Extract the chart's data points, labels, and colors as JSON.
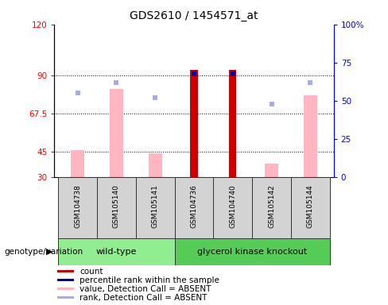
{
  "title": "GDS2610 / 1454571_at",
  "samples": [
    "GSM104738",
    "GSM105140",
    "GSM105141",
    "GSM104736",
    "GSM104740",
    "GSM105142",
    "GSM105144"
  ],
  "count_values": [
    null,
    null,
    null,
    93,
    93,
    null,
    null
  ],
  "count_color": "#CC0000",
  "percentile_values": [
    null,
    null,
    null,
    67.5,
    67.5,
    null,
    null
  ],
  "percentile_color": "#0000AA",
  "absent_value_heights": [
    46,
    82,
    44,
    null,
    null,
    38,
    78
  ],
  "absent_value_color": "#FFB6C1",
  "absent_rank_values": [
    55,
    62,
    52,
    null,
    null,
    48,
    62
  ],
  "absent_rank_color": "#AAAAEE",
  "ylim_left": [
    30,
    120
  ],
  "ylim_right": [
    0,
    100
  ],
  "yticks_left": [
    30,
    45,
    67.5,
    90,
    120
  ],
  "ytick_labels_left": [
    "30",
    "45",
    "67.5",
    "90",
    "120"
  ],
  "yticks_right": [
    0,
    25,
    50,
    75,
    100
  ],
  "ytick_labels_right": [
    "0",
    "25",
    "50",
    "75",
    "100%"
  ],
  "hlines": [
    45,
    67.5,
    90
  ],
  "legend_items": [
    {
      "label": "count",
      "color": "#CC0000"
    },
    {
      "label": "percentile rank within the sample",
      "color": "#0000AA"
    },
    {
      "label": "value, Detection Call = ABSENT",
      "color": "#FFB6C1"
    },
    {
      "label": "rank, Detection Call = ABSENT",
      "color": "#AAAAEE"
    }
  ],
  "genotype_label": "genotype/variation",
  "wt_color": "#90EE90",
  "gk_color": "#55CC55",
  "plot_bg_color": "#ffffff",
  "fig_bg_color": "#ffffff"
}
